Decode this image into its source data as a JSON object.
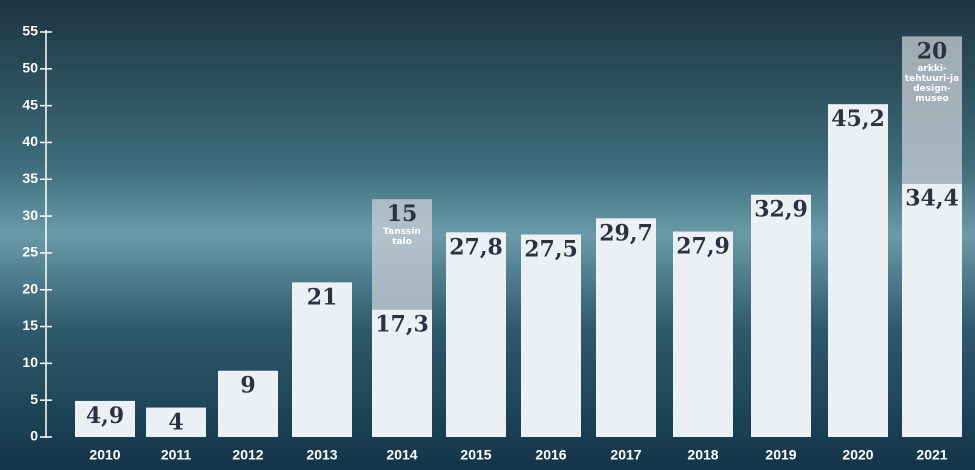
{
  "chart_data": {
    "type": "stacked_bar",
    "categories": [
      "2010",
      "2011",
      "2012",
      "2013",
      "2014",
      "2015",
      "2016",
      "2017",
      "2018",
      "2019",
      "2020",
      "2021"
    ],
    "series": [
      {
        "color": "#eceff3",
        "values": [
          4.9,
          4,
          9,
          21,
          17.3,
          27.8,
          27.5,
          29.7,
          27.9,
          32.9,
          45.2,
          34.4
        ],
        "value_labels": [
          "4,9",
          "4",
          "9",
          "21",
          "17,3",
          "27,8",
          "27,5",
          "29,7",
          "27,9",
          "32,9",
          "45,2",
          "34,4"
        ]
      },
      {
        "color": "#c9cfd6",
        "values": [
          null,
          null,
          null,
          null,
          15,
          null,
          null,
          null,
          null,
          null,
          null,
          20
        ],
        "value_notes": [
          null,
          null,
          null,
          null,
          "Tanssin talo",
          null,
          null,
          null,
          null,
          null,
          null,
          "arkki-tehtuuri-ja design-museo"
        ]
      }
    ],
    "ylim": [
      0,
      55
    ],
    "yticks": [
      0,
      5,
      10,
      15,
      20,
      25,
      30,
      35,
      40,
      45,
      50,
      55
    ]
  }
}
